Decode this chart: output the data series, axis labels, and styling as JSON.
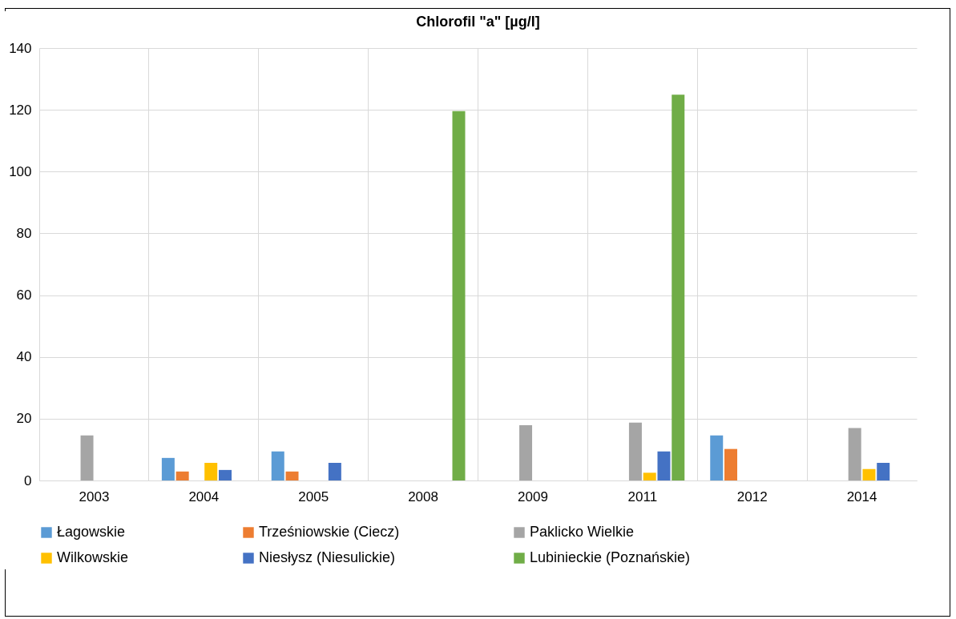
{
  "chart_data": {
    "type": "bar",
    "title": "Chlorofil \"a\" [µg/l]",
    "categories": [
      "2003",
      "2004",
      "2005",
      "2008",
      "2009",
      "2011",
      "2012",
      "2014"
    ],
    "series": [
      {
        "name": "Łagowskie",
        "color": "#5b9bd5",
        "values": [
          null,
          7.3,
          9.4,
          null,
          null,
          null,
          14.6,
          null
        ]
      },
      {
        "name": "Trześniowskie (Ciecz)",
        "color": "#ed7d31",
        "values": [
          null,
          2.9,
          2.9,
          null,
          null,
          null,
          10.2,
          null
        ]
      },
      {
        "name": "Paklicko Wielkie",
        "color": "#a5a5a5",
        "values": [
          14.6,
          null,
          null,
          null,
          17.9,
          18.7,
          null,
          17.0
        ]
      },
      {
        "name": "Wilkowskie",
        "color": "#ffc000",
        "values": [
          null,
          5.7,
          null,
          null,
          null,
          2.5,
          null,
          3.7
        ]
      },
      {
        "name": "Niesłysz (Niesulickie)",
        "color": "#4472c4",
        "values": [
          null,
          3.4,
          5.7,
          null,
          null,
          9.4,
          null,
          5.7
        ]
      },
      {
        "name": "Lubinieckie (Poznańskie)",
        "color": "#70ad47",
        "values": [
          null,
          null,
          null,
          119.6,
          null,
          124.9,
          null,
          null
        ]
      }
    ],
    "ylim": [
      0,
      140
    ],
    "yticks": [
      0,
      20,
      40,
      60,
      80,
      100,
      120,
      140
    ],
    "grid": true,
    "legend": "bottom"
  }
}
